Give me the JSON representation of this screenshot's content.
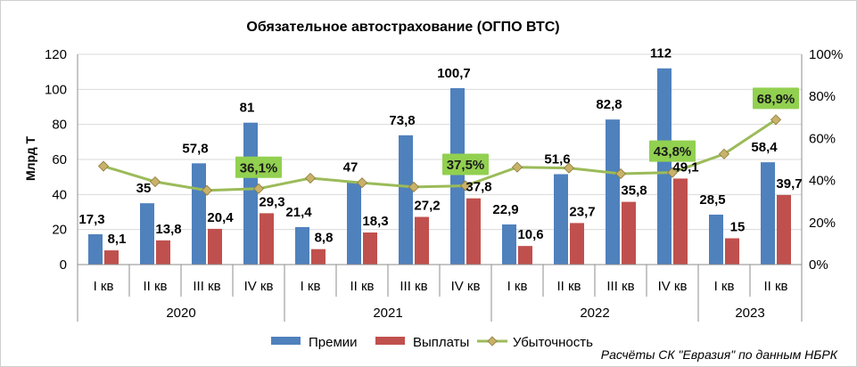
{
  "chart_data": {
    "type": "bar",
    "title": "Обязательное автострахование (ОГПО ВТС)",
    "ylabel": "Млрд Т",
    "ylim": [
      0,
      120
    ],
    "yticks": [
      "0",
      "20",
      "40",
      "60",
      "80",
      "100",
      "120"
    ],
    "y2lim": [
      0,
      100
    ],
    "y2ticks": [
      "0%",
      "20%",
      "40%",
      "60%",
      "80%",
      "100%"
    ],
    "grid": true,
    "legend_position": "bottom",
    "categories": [
      "I кв",
      "II кв",
      "III кв",
      "IV кв",
      "I кв",
      "II кв",
      "III кв",
      "IV кв",
      "I кв",
      "II кв",
      "III кв",
      "IV кв",
      "I кв",
      "II кв"
    ],
    "groups": [
      {
        "label": "2020",
        "count": 4
      },
      {
        "label": "2021",
        "count": 4
      },
      {
        "label": "2022",
        "count": 4
      },
      {
        "label": "2023",
        "count": 2
      }
    ],
    "series": [
      {
        "name": "Премии",
        "kind": "bar",
        "axis": "left",
        "color": "#4f81bd",
        "values": [
          17.3,
          35,
          57.8,
          81,
          21.4,
          47,
          73.8,
          100.7,
          22.9,
          51.6,
          82.8,
          112,
          28.5,
          58.4
        ],
        "labels": [
          "17,3",
          "35",
          "57,8",
          "81",
          "21,4",
          "47",
          "73,8",
          "100,7",
          "22,9",
          "51,6",
          "82,8",
          "112",
          "28,5",
          "58,4"
        ]
      },
      {
        "name": "Выплаты",
        "kind": "bar",
        "axis": "left",
        "color": "#c0504d",
        "values": [
          8.1,
          13.8,
          20.4,
          29.3,
          8.8,
          18.3,
          27.2,
          37.8,
          10.6,
          23.7,
          35.8,
          49.1,
          15,
          39.7
        ],
        "labels": [
          "8,1",
          "13,8",
          "20,4",
          "29,3",
          "8,8",
          "18,3",
          "27,2",
          "37,8",
          "10,6",
          "23,7",
          "35,8",
          "49,1",
          "15",
          "39,7"
        ]
      },
      {
        "name": "Убыточность",
        "kind": "line",
        "axis": "right",
        "color": "#9bbb59",
        "marker_color": "#c9b16a",
        "values": [
          46.8,
          39.4,
          35.3,
          36.1,
          41.1,
          38.9,
          36.9,
          37.5,
          46.3,
          45.9,
          43.2,
          43.8,
          52.6,
          68.9
        ],
        "highlighted_labels": [
          {
            "index": 3,
            "text": "36,1%"
          },
          {
            "index": 7,
            "text": "37,5%"
          },
          {
            "index": 11,
            "text": "43,8%"
          },
          {
            "index": 13,
            "text": "68,9%"
          }
        ]
      }
    ],
    "source_note": "Расчёты СК \"Евразия\" по данным НБРК"
  }
}
